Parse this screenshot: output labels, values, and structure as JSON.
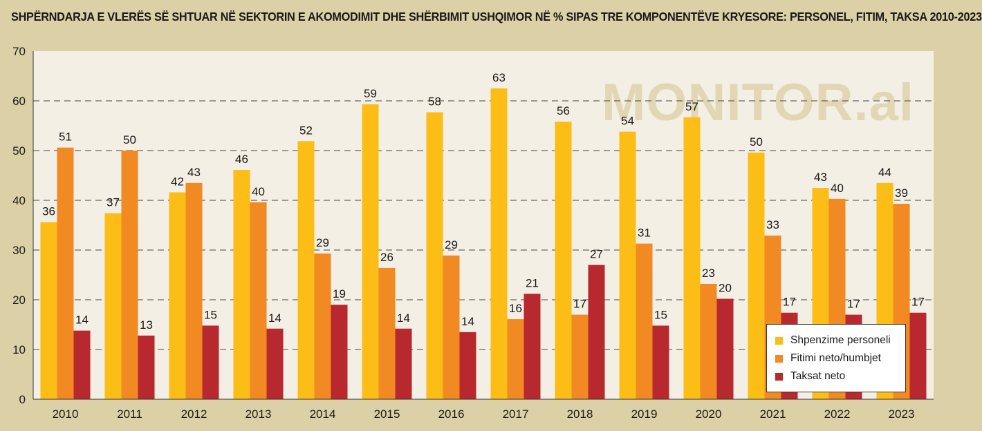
{
  "chart_data": {
    "type": "bar",
    "title": "SHPËRNDARJA E VLERËS SË SHTUAR NË SEKTORIN E AKOMODIMIT DHE SHËRBIMIT USHQIMOR NË % SIPAS TRE KOMPONENTËVE KRYESORE: PERSONEL, FITIM, TAKSA 2010-2023",
    "watermark": "MONITOR.al",
    "categories": [
      "2010",
      "2011",
      "2012",
      "2013",
      "2014",
      "2015",
      "2016",
      "2017",
      "2018",
      "2019",
      "2020",
      "2021",
      "2022",
      "2023"
    ],
    "ylim": [
      0,
      70
    ],
    "yticks": [
      0,
      10,
      20,
      30,
      40,
      50,
      60,
      70
    ],
    "grid": true,
    "legend_position": "bottom-right",
    "series": [
      {
        "name": "Shpenzime personeli",
        "color": "#fbbd16",
        "values": [
          35.6,
          37.4,
          41.6,
          46.1,
          51.9,
          59.3,
          57.7,
          62.5,
          55.8,
          53.8,
          56.7,
          49.6,
          42.5,
          43.5
        ],
        "labels": [
          "36",
          "37",
          "42",
          "46",
          "52",
          "59",
          "58",
          "63",
          "56",
          "54",
          "57",
          "50",
          "43",
          "44"
        ]
      },
      {
        "name": "Fitimi neto/humbjet",
        "color": "#f28a24",
        "values": [
          50.6,
          50.0,
          43.5,
          39.6,
          29.3,
          26.4,
          28.9,
          16.1,
          17.0,
          31.3,
          23.2,
          32.9,
          40.3,
          39.3
        ],
        "labels": [
          "51",
          "50",
          "43",
          "40",
          "29",
          "26",
          "29",
          "16",
          "17",
          "31",
          "23",
          "33",
          "40",
          "39"
        ]
      },
      {
        "name": "Taksat neto",
        "color": "#b8282f",
        "values": [
          13.8,
          12.8,
          14.8,
          14.2,
          19.0,
          14.2,
          13.5,
          21.2,
          27.0,
          14.8,
          20.2,
          17.4,
          17.0,
          17.4
        ],
        "labels": [
          "14",
          "13",
          "15",
          "14",
          "19",
          "14",
          "14",
          "21",
          "27",
          "15",
          "20",
          "17",
          "17",
          "17"
        ]
      }
    ]
  }
}
